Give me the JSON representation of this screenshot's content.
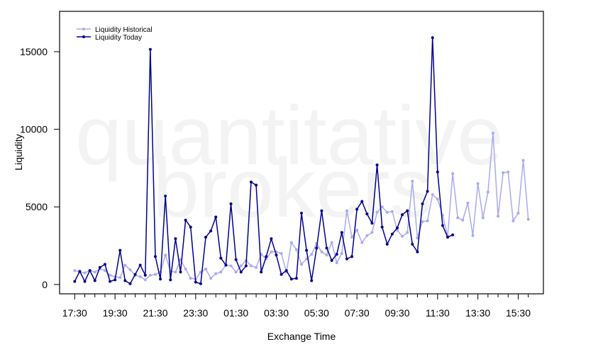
{
  "chart_data": {
    "type": "line",
    "xlabel": "Exchange Time",
    "ylabel": "Liquidity",
    "watermark": [
      "quantitative",
      "brokers"
    ],
    "ylim": [
      -600,
      17600
    ],
    "yticks": [
      0,
      5000,
      10000,
      15000
    ],
    "x_range": [
      -3,
      93
    ],
    "xtick_labels": [
      "17:30",
      "19:30",
      "21:30",
      "23:30",
      "01:30",
      "03:30",
      "05:30",
      "07:30",
      "09:30",
      "11:30",
      "13:30",
      "15:30"
    ],
    "minor_tick_count": 46,
    "legend": {
      "placement": "top-left"
    },
    "series": [
      {
        "name": "Liquidity Historical",
        "color": "#aaaaee",
        "values": [
          900,
          800,
          750,
          900,
          800,
          1000,
          900,
          600,
          500,
          450,
          1250,
          950,
          600,
          500,
          300,
          600,
          650,
          800,
          1900,
          850,
          800,
          1600,
          1000,
          400,
          350,
          800,
          1000,
          400,
          700,
          800,
          1250,
          1200,
          800,
          1200,
          1550,
          1200,
          1100,
          1950,
          1650,
          2100,
          2100,
          2000,
          800,
          2700,
          2250,
          1300,
          1650,
          1950,
          2650,
          2100,
          1900,
          2700,
          1400,
          2000,
          4750,
          3050,
          3500,
          2700,
          3150,
          3350,
          4650,
          5000,
          4650,
          4700,
          3500,
          3100,
          3350,
          6650,
          3000,
          4050,
          4100,
          5800,
          5500,
          4450,
          3100,
          7150,
          4300,
          4150,
          5250,
          3150,
          6500,
          4300,
          5950,
          9750,
          4400,
          7200,
          7250,
          4100,
          4600,
          8000,
          4200
        ]
      },
      {
        "name": "Liquidity Today",
        "color": "#00008b",
        "values": [
          200,
          850,
          200,
          900,
          250,
          1100,
          1300,
          200,
          300,
          2200,
          250,
          50,
          650,
          1250,
          600,
          15150,
          1800,
          350,
          5700,
          300,
          2950,
          800,
          4150,
          3700,
          150,
          50,
          3050,
          3450,
          4350,
          1700,
          1250,
          5200,
          1600,
          800,
          1200,
          6600,
          6400,
          800,
          1800,
          2950,
          1900,
          650,
          900,
          350,
          400,
          4600,
          2200,
          250,
          2350,
          4750,
          2350,
          1550,
          1950,
          3350,
          1650,
          1800,
          4850,
          5350,
          4550,
          3950,
          7700,
          3700,
          2600,
          3250,
          3650,
          4500,
          4750,
          2600,
          2100,
          5200,
          6000,
          15900,
          7250,
          3800,
          3050,
          3200
        ]
      }
    ]
  }
}
